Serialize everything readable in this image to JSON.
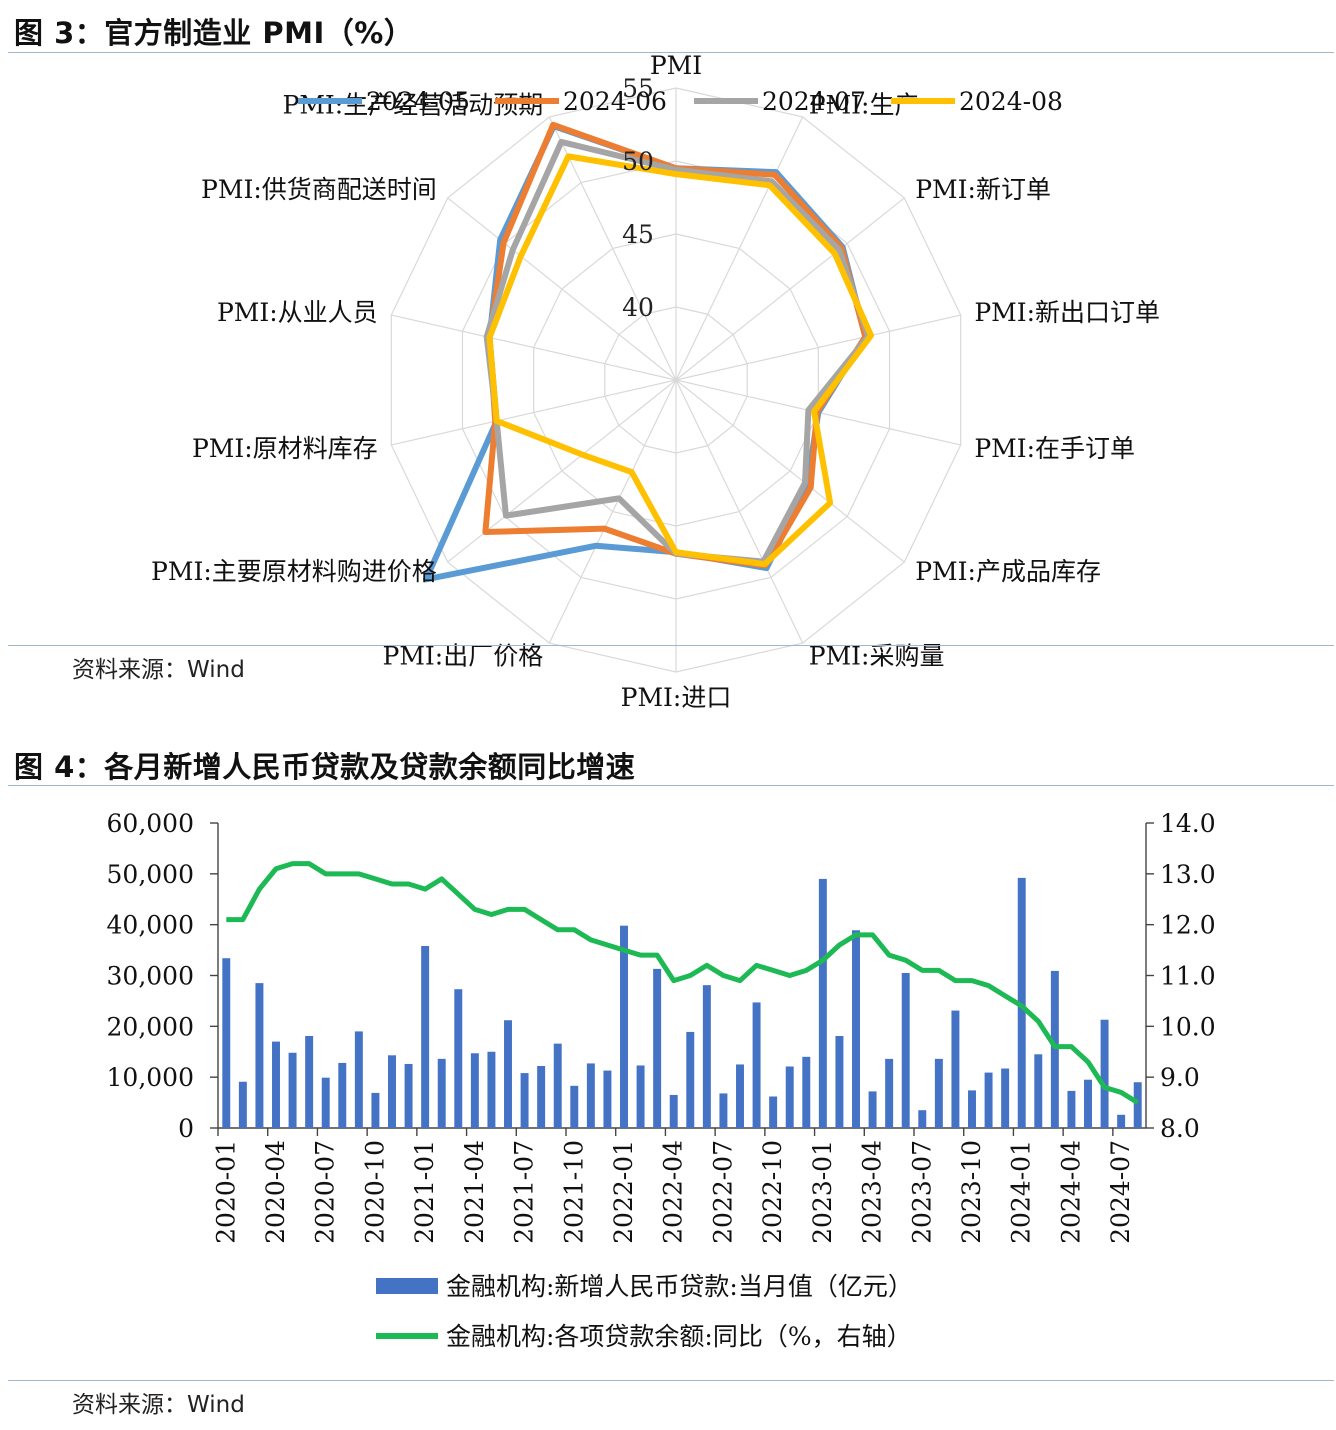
{
  "figure3": {
    "title": "图 3：官方制造业 PMI（%）",
    "source": "资料来源：Wind"
  },
  "figure4": {
    "title": "图 4：各月新增人民币贷款及贷款余额同比增速",
    "source": "资料来源：Wind"
  },
  "colors": {
    "rule": "#9fb6cc",
    "series_2024_05": "#5b9bd5",
    "series_2024_06": "#ed7d31",
    "series_2024_07": "#a5a5a5",
    "series_2024_08": "#ffc000",
    "bar": "#4472c4",
    "line": "#1db954"
  },
  "chart_data": [
    {
      "type": "radar",
      "legend_position": "top",
      "categories": [
        "PMI",
        "PMI:生产",
        "PMI:新订单",
        "PMI:新出口订单",
        "PMI:在手订单",
        "PMI:产成品库存",
        "PMI:采购量",
        "PMI:进口",
        "PMI:出厂价格",
        "PMI:主要原材料购进价格",
        "PMI:原材料库存",
        "PMI:从业人员",
        "PMI:供货商配送时间",
        "PMI:生产经营活动预期"
      ],
      "r_ticks": [
        40,
        45,
        50,
        55
      ],
      "r_range": [
        35,
        55
      ],
      "grid": true,
      "series": [
        {
          "name": "2024-05",
          "values": [
            49.5,
            50.8,
            49.6,
            48.3,
            45.0,
            46.5,
            49.3,
            46.8,
            47.6,
            56.9,
            47.6,
            48.1,
            50.4,
            54.3
          ]
        },
        {
          "name": "2024-06",
          "values": [
            49.5,
            50.6,
            49.5,
            48.3,
            44.9,
            46.8,
            49.1,
            46.9,
            46.3,
            51.7,
            47.7,
            48.1,
            50.1,
            54.4
          ]
        },
        {
          "name": "2024-07",
          "values": [
            49.4,
            50.1,
            49.3,
            48.5,
            44.3,
            46.3,
            48.8,
            46.9,
            44.0,
            49.9,
            47.6,
            48.3,
            49.3,
            53.1
          ]
        },
        {
          "name": "2024-08",
          "values": [
            49.1,
            49.8,
            48.9,
            48.7,
            44.7,
            48.5,
            49.0,
            46.8,
            42.0,
            43.2,
            47.6,
            48.1,
            48.6,
            52.0
          ]
        }
      ]
    },
    {
      "type": "bar+line",
      "x": [
        "2020-01",
        "2020-02",
        "2020-03",
        "2020-04",
        "2020-05",
        "2020-06",
        "2020-07",
        "2020-08",
        "2020-09",
        "2020-10",
        "2020-11",
        "2020-12",
        "2021-01",
        "2021-02",
        "2021-03",
        "2021-04",
        "2021-05",
        "2021-06",
        "2021-07",
        "2021-08",
        "2021-09",
        "2021-10",
        "2021-11",
        "2021-12",
        "2022-01",
        "2022-02",
        "2022-03",
        "2022-04",
        "2022-05",
        "2022-06",
        "2022-07",
        "2022-08",
        "2022-09",
        "2022-10",
        "2022-11",
        "2022-12",
        "2023-01",
        "2023-02",
        "2023-03",
        "2023-04",
        "2023-05",
        "2023-06",
        "2023-07",
        "2023-08",
        "2023-09",
        "2023-10",
        "2023-11",
        "2023-12",
        "2024-01",
        "2024-02",
        "2024-03",
        "2024-04",
        "2024-05",
        "2024-06",
        "2024-07",
        "2024-08"
      ],
      "x_tick_labels": [
        "2020-01",
        "2020-04",
        "2020-07",
        "2020-10",
        "2021-01",
        "2021-04",
        "2021-07",
        "2021-10",
        "2022-01",
        "2022-04",
        "2022-07",
        "2022-10",
        "2023-01",
        "2023-04",
        "2023-07",
        "2023-10",
        "2024-01",
        "2024-04",
        "2024-07"
      ],
      "left_axis": {
        "range": [
          0,
          60000
        ],
        "ticks": [
          0,
          10000,
          20000,
          30000,
          40000,
          50000,
          60000
        ],
        "tick_labels": [
          "0",
          "10,000",
          "20,000",
          "30,000",
          "40,000",
          "50,000",
          "60,000"
        ]
      },
      "right_axis": {
        "range": [
          8.0,
          14.0
        ],
        "ticks": [
          8.0,
          9.0,
          10.0,
          11.0,
          12.0,
          13.0,
          14.0
        ],
        "tick_labels": [
          "8.0",
          "9.0",
          "10.0",
          "11.0",
          "12.0",
          "13.0",
          "14.0"
        ]
      },
      "legend_position": "bottom",
      "series": [
        {
          "name": "金融机构:新增人民币贷款:当月值（亿元）",
          "kind": "bar",
          "axis": "left",
          "values": [
            33400,
            9100,
            28500,
            17000,
            14800,
            18100,
            9900,
            12800,
            19000,
            6900,
            14300,
            12600,
            35800,
            13600,
            27300,
            14700,
            15000,
            21200,
            10800,
            12200,
            16600,
            8300,
            12700,
            11300,
            39800,
            12300,
            31300,
            6500,
            18900,
            28100,
            6800,
            12500,
            24700,
            6200,
            12100,
            14000,
            49000,
            18100,
            38900,
            7200,
            13600,
            30500,
            3500,
            13600,
            23100,
            7400,
            10900,
            11700,
            49200,
            14500,
            30900,
            7300,
            9500,
            21300,
            2600,
            9000
          ]
        },
        {
          "name": "金融机构:各项贷款余额:同比（%，右轴）",
          "kind": "line",
          "axis": "right",
          "values": [
            12.1,
            12.1,
            12.7,
            13.1,
            13.2,
            13.2,
            13.0,
            13.0,
            13.0,
            12.9,
            12.8,
            12.8,
            12.7,
            12.9,
            12.6,
            12.3,
            12.2,
            12.3,
            12.3,
            12.1,
            11.9,
            11.9,
            11.7,
            11.6,
            11.5,
            11.4,
            11.4,
            10.9,
            11.0,
            11.2,
            11.0,
            10.9,
            11.2,
            11.1,
            11.0,
            11.1,
            11.3,
            11.6,
            11.8,
            11.8,
            11.4,
            11.3,
            11.1,
            11.1,
            10.9,
            10.9,
            10.8,
            10.6,
            10.4,
            10.1,
            9.6,
            9.6,
            9.3,
            8.8,
            8.7,
            8.5
          ]
        }
      ]
    }
  ]
}
